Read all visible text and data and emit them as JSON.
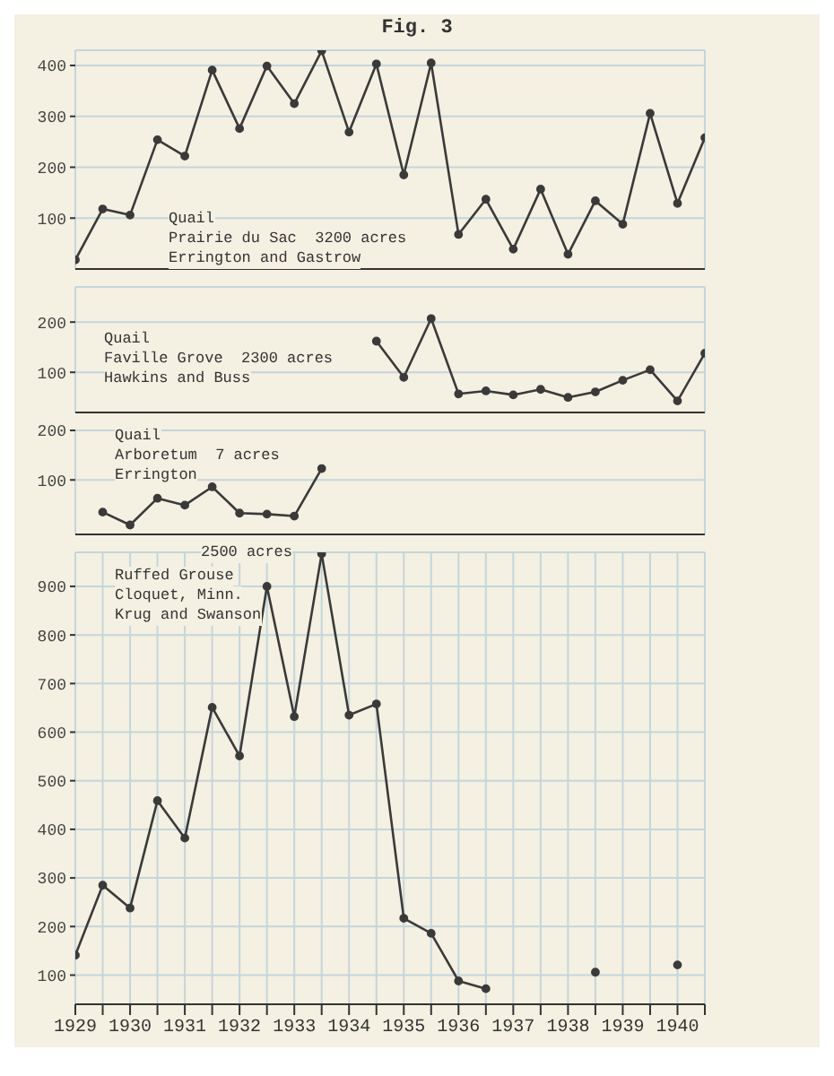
{
  "chart_data": [
    {
      "type": "line",
      "title": "Fig. 3",
      "annotations": [
        "Quail",
        "Prairie du Sac  3200 acres",
        "Errington and Gastrow"
      ],
      "categories": [
        null,
        null,
        null,
        null,
        null,
        null,
        null,
        null,
        null,
        null,
        null,
        null,
        null,
        null,
        null,
        null,
        null,
        null,
        null,
        null,
        null,
        null,
        null,
        null
      ],
      "series": [
        {
          "color": "#3a3a3a",
          "values": [
            18,
            118,
            106,
            254,
            222,
            391,
            276,
            399,
            325,
            429,
            269,
            403,
            185,
            405,
            68,
            137,
            39,
            157,
            29,
            134,
            88,
            306,
            129,
            258
          ]
        }
      ],
      "ylim": [
        0,
        430
      ],
      "yticks": [
        100,
        200,
        300,
        400
      ],
      "tick_labels": "y",
      "grid": true,
      "legend": false,
      "marker": "circle",
      "line_style": "solid"
    },
    {
      "type": "line",
      "annotations": [
        "Quail",
        "Faville Grove  2300 acres",
        "Hawkins and Buss"
      ],
      "categories": [
        null,
        null,
        null,
        null,
        null,
        null,
        null,
        null,
        null,
        null,
        null,
        null,
        null,
        null,
        null,
        null,
        null,
        null,
        null,
        null,
        null,
        null,
        null,
        null
      ],
      "series": [
        {
          "color": "#3a3a3a",
          "values": [
            null,
            null,
            null,
            null,
            null,
            null,
            null,
            null,
            null,
            null,
            null,
            162,
            90,
            207,
            57,
            63,
            55,
            66,
            50,
            61,
            84,
            105,
            43,
            138
          ]
        }
      ],
      "ylim": [
        20,
        270
      ],
      "yticks": [
        100,
        200
      ],
      "tick_labels": "y",
      "grid": true,
      "marker": "circle",
      "line_style": "solid"
    },
    {
      "type": "line",
      "annotations": [
        "Quail",
        "Arboretum  7 acres",
        "Errington"
      ],
      "categories": [
        null,
        null,
        null,
        null,
        null,
        null,
        null,
        null,
        null,
        null,
        null,
        null,
        null,
        null,
        null,
        null,
        null,
        null,
        null,
        null,
        null,
        null,
        null,
        null
      ],
      "series": [
        {
          "color": "#3a3a3a",
          "values": [
            null,
            35,
            9,
            63,
            49,
            86,
            33,
            31,
            27,
            123,
            null,
            null,
            null,
            null,
            null,
            null,
            null,
            null,
            null,
            null,
            null,
            null,
            null,
            null
          ]
        }
      ],
      "ylim": [
        -10,
        200
      ],
      "yticks": [
        100,
        200
      ],
      "tick_labels": "y",
      "grid": true,
      "marker": "circle",
      "line_style": "solid"
    },
    {
      "type": "line",
      "annotations": [
        "Ruffed Grouse",
        "Cloquet, Minn.",
        "Krug and Swanson",
        "2500 acres"
      ],
      "x": [
        1929,
        1929.5,
        1930,
        1930.5,
        1931,
        1931.5,
        1932,
        1932.5,
        1933,
        1933.5,
        1934,
        1934.5,
        1935,
        1935.5,
        1936,
        1936.5,
        1937,
        1937.5,
        1938,
        1938.5,
        1939,
        1939.5,
        1940
      ],
      "series": [
        {
          "color": "#3a3a3a",
          "values": [
            141,
            285,
            238,
            459,
            382,
            651,
            551,
            900,
            632,
            967,
            635,
            658,
            217,
            186,
            88,
            72,
            null,
            null,
            null,
            106,
            null,
            null,
            121
          ]
        }
      ],
      "xlim": [
        1929,
        1940.5
      ],
      "ylim": [
        40,
        970
      ],
      "yticks": [
        100,
        200,
        300,
        400,
        500,
        600,
        700,
        800,
        900
      ],
      "xticks": [
        1929,
        {
          "value": 1929.5,
          "label": null
        },
        1930,
        {
          "value": 1930.5,
          "label": null
        },
        1931,
        {
          "value": 1931.5,
          "label": null
        },
        1932,
        {
          "value": 1932.5,
          "label": null
        },
        1933,
        {
          "value": 1933.5,
          "label": null
        },
        1934,
        {
          "value": 1934.5,
          "label": null
        },
        1935,
        {
          "value": 1935.5,
          "label": null
        },
        1936,
        {
          "value": 1936.5,
          "label": null
        },
        1937,
        {
          "value": 1937.5,
          "label": null
        },
        1938,
        {
          "value": 1938.5,
          "label": null
        },
        1939,
        {
          "value": 1939.5,
          "label": null
        },
        1940,
        {
          "value": 1940.5,
          "label": null
        }
      ],
      "grid": true,
      "marker": "circle",
      "line_style": "solid"
    }
  ]
}
